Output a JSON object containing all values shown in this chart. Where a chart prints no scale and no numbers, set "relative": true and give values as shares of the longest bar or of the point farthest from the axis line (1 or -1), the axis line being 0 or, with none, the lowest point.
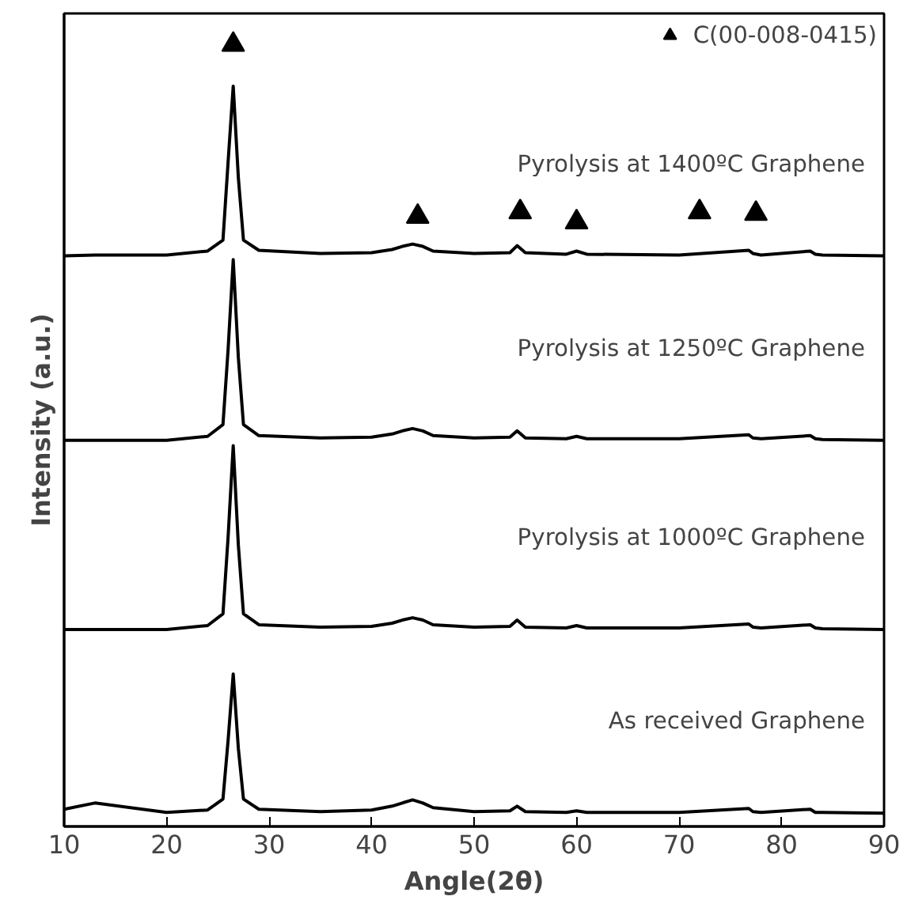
{
  "chart_data": {
    "type": "line",
    "xlabel": "Angle(2θ)",
    "ylabel": "Intensity (a.u.)",
    "relative": true,
    "xlim": [
      10,
      90
    ],
    "xticks": [
      10,
      20,
      30,
      40,
      50,
      60,
      70,
      80,
      90
    ],
    "tick_labels": "x",
    "grid": false,
    "legend": "top right",
    "x": [
      10,
      13,
      20,
      24,
      25.5,
      26,
      26.5,
      27,
      27.5,
      29,
      35,
      40,
      42,
      43,
      44,
      45,
      46,
      50,
      53.5,
      54.2,
      55,
      59,
      60,
      61,
      70,
      76.8,
      77.2,
      78,
      82.8,
      83.3,
      84,
      90
    ],
    "series": [
      {
        "color": "#000000",
        "values": [
          0.73,
          0.731,
          0.731,
          0.736,
          0.75,
          0.85,
          0.947,
          0.83,
          0.75,
          0.737,
          0.733,
          0.734,
          0.738,
          0.742,
          0.745,
          0.742,
          0.736,
          0.733,
          0.734,
          0.743,
          0.734,
          0.732,
          0.736,
          0.732,
          0.731,
          0.737,
          0.733,
          0.731,
          0.736,
          0.732,
          0.731,
          0.73
        ]
      },
      {
        "color": "#000000",
        "values": [
          0.494,
          0.494,
          0.494,
          0.499,
          0.514,
          0.61,
          0.725,
          0.6,
          0.514,
          0.5,
          0.497,
          0.498,
          0.502,
          0.506,
          0.509,
          0.506,
          0.5,
          0.497,
          0.498,
          0.506,
          0.497,
          0.496,
          0.499,
          0.496,
          0.496,
          0.501,
          0.497,
          0.496,
          0.5,
          0.496,
          0.495,
          0.494
        ]
      },
      {
        "color": "#000000",
        "values": [
          0.252,
          0.252,
          0.252,
          0.257,
          0.272,
          0.37,
          0.487,
          0.36,
          0.272,
          0.258,
          0.255,
          0.256,
          0.26,
          0.264,
          0.267,
          0.264,
          0.258,
          0.255,
          0.256,
          0.264,
          0.255,
          0.254,
          0.257,
          0.254,
          0.254,
          0.259,
          0.255,
          0.254,
          0.258,
          0.254,
          0.253,
          0.252
        ]
      },
      {
        "color": "#000000",
        "values": [
          0.022,
          0.03,
          0.018,
          0.021,
          0.035,
          0.11,
          0.195,
          0.1,
          0.035,
          0.022,
          0.019,
          0.021,
          0.026,
          0.03,
          0.034,
          0.03,
          0.024,
          0.019,
          0.02,
          0.026,
          0.019,
          0.018,
          0.02,
          0.018,
          0.018,
          0.023,
          0.019,
          0.018,
          0.022,
          0.018,
          0.018,
          0.017
        ]
      },
      {
        "type": "scatter",
        "name": "C(00-008-0415)",
        "color": "#000000",
        "marker": "triangle",
        "x": [
          26.5,
          44.5,
          54.5,
          60,
          72,
          77.5
        ],
        "values": [
          1.0,
          0.78,
          0.786,
          0.773,
          0.786,
          0.784
        ]
      }
    ],
    "annotations": [
      "Pyrolysis at 1400ºC Graphene",
      "Pyrolysis at 1250ºC Graphene",
      "Pyrolysis at 1000ºC Graphene",
      "As received Graphene"
    ]
  }
}
